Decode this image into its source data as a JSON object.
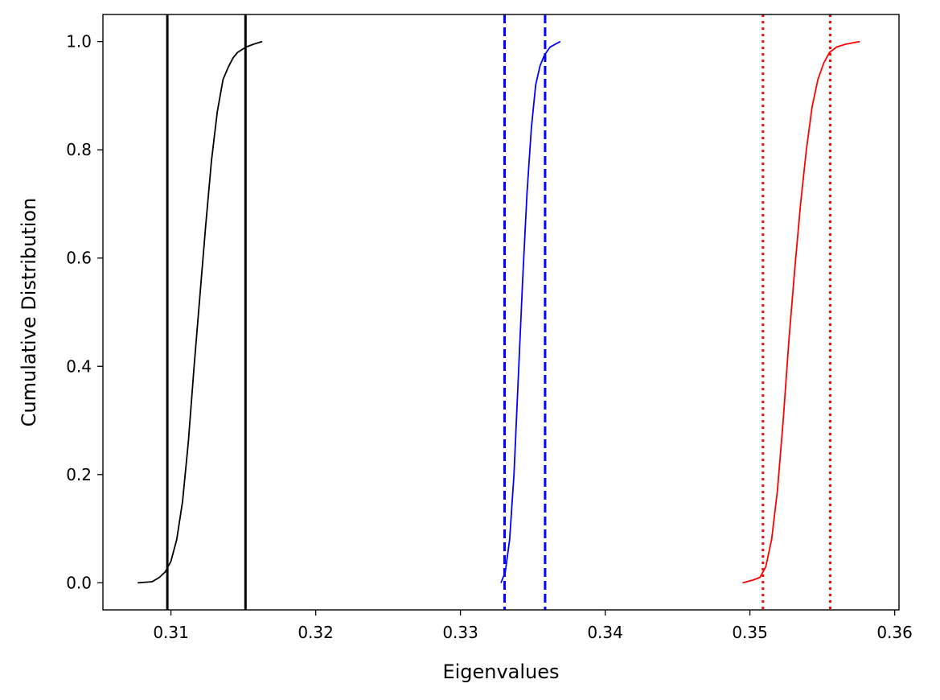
{
  "chart_data": {
    "type": "line",
    "title": "",
    "xlabel": "Eigenvalues",
    "ylabel": "Cumulative Distribution",
    "xlim": [
      0.3053,
      0.3603
    ],
    "ylim": [
      -0.05,
      1.05
    ],
    "x_ticks": [
      0.31,
      0.32,
      0.33,
      0.34,
      0.35,
      0.36
    ],
    "x_tick_labels": [
      "0.31",
      "0.32",
      "0.33",
      "0.34",
      "0.35",
      "0.36"
    ],
    "y_ticks": [
      0.0,
      0.2,
      0.4,
      0.6,
      0.8,
      1.0
    ],
    "y_tick_labels": [
      "0.0",
      "0.2",
      "0.4",
      "0.6",
      "0.8",
      "1.0"
    ],
    "grid": false,
    "legend": false,
    "series": [
      {
        "color": "#000000",
        "x": [
          0.3077,
          0.3087,
          0.3092,
          0.3096,
          0.31,
          0.3104,
          0.3108,
          0.3112,
          0.3116,
          0.312,
          0.3124,
          0.3128,
          0.3132,
          0.3136,
          0.314,
          0.3143,
          0.3146,
          0.3149,
          0.3152,
          0.3157,
          0.3163
        ],
        "y": [
          0.0,
          0.002,
          0.01,
          0.02,
          0.04,
          0.08,
          0.15,
          0.26,
          0.4,
          0.53,
          0.66,
          0.78,
          0.87,
          0.93,
          0.955,
          0.97,
          0.98,
          0.985,
          0.99,
          0.995,
          1.0
        ]
      },
      {
        "color": "#0000ff",
        "x": [
          0.3328,
          0.3331,
          0.3334,
          0.3337,
          0.334,
          0.3343,
          0.3346,
          0.3349,
          0.3352,
          0.3355,
          0.3358,
          0.3362,
          0.3369
        ],
        "y": [
          0.0,
          0.02,
          0.08,
          0.2,
          0.38,
          0.56,
          0.72,
          0.84,
          0.92,
          0.955,
          0.975,
          0.99,
          1.0
        ]
      },
      {
        "color": "#ff0000",
        "x": [
          0.3495,
          0.3502,
          0.3507,
          0.3511,
          0.3515,
          0.3519,
          0.3523,
          0.3527,
          0.3531,
          0.3535,
          0.3539,
          0.3543,
          0.3547,
          0.3551,
          0.3555,
          0.356,
          0.3566,
          0.3576
        ],
        "y": [
          0.0,
          0.005,
          0.01,
          0.03,
          0.08,
          0.17,
          0.3,
          0.45,
          0.58,
          0.7,
          0.8,
          0.88,
          0.93,
          0.96,
          0.98,
          0.99,
          0.995,
          1.0
        ]
      }
    ],
    "vlines": [
      {
        "x": 0.30975,
        "color": "#000000",
        "style": "solid"
      },
      {
        "x": 0.31515,
        "color": "#000000",
        "style": "solid"
      },
      {
        "x": 0.33305,
        "color": "#0000ff",
        "style": "dashed"
      },
      {
        "x": 0.33585,
        "color": "#0000ff",
        "style": "dashed"
      },
      {
        "x": 0.3509,
        "color": "#ff0000",
        "style": "dotted"
      },
      {
        "x": 0.35555,
        "color": "#ff0000",
        "style": "dotted"
      }
    ]
  }
}
